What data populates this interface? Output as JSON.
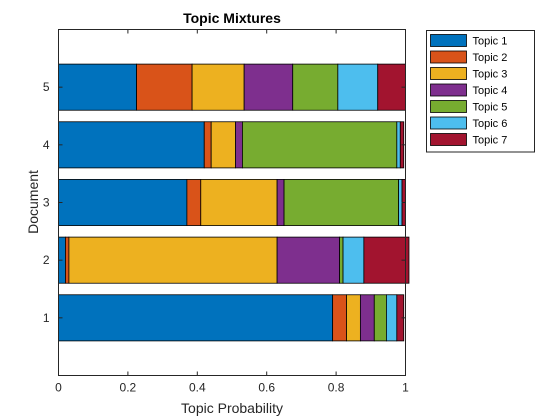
{
  "chart_data": {
    "type": "bar",
    "orientation": "horizontal",
    "stacked": true,
    "title": "Topic Mixtures",
    "xlabel": "Topic Probability",
    "ylabel": "Document",
    "xlim": [
      0,
      1
    ],
    "ylim": [
      0,
      6
    ],
    "xticks": [
      "0",
      "0.2",
      "0.4",
      "0.6",
      "0.8",
      "1"
    ],
    "xtick_values": [
      0,
      0.2,
      0.4,
      0.6,
      0.8,
      1
    ],
    "categories": [
      "1",
      "2",
      "3",
      "4",
      "5"
    ],
    "legend_position": "outside-top-right",
    "grid": false,
    "series": [
      {
        "name": "Topic 1",
        "color": "#0072BD",
        "values": [
          0.79,
          0.02,
          0.37,
          0.42,
          0.225
        ]
      },
      {
        "name": "Topic 2",
        "color": "#D95319",
        "values": [
          0.04,
          0.01,
          0.04,
          0.02,
          0.16
        ]
      },
      {
        "name": "Topic 3",
        "color": "#EDB120",
        "values": [
          0.04,
          0.6,
          0.22,
          0.07,
          0.15
        ]
      },
      {
        "name": "Topic 4",
        "color": "#7E2F8E",
        "values": [
          0.04,
          0.18,
          0.02,
          0.02,
          0.14
        ]
      },
      {
        "name": "Topic 5",
        "color": "#77AC30",
        "values": [
          0.035,
          0.01,
          0.33,
          0.445,
          0.13
        ]
      },
      {
        "name": "Topic 6",
        "color": "#4DBEEE",
        "values": [
          0.03,
          0.06,
          0.01,
          0.01,
          0.115
        ]
      },
      {
        "name": "Topic 7",
        "color": "#A2142F",
        "values": [
          0.02,
          0.13,
          0.01,
          0.01,
          0.08
        ]
      }
    ]
  }
}
